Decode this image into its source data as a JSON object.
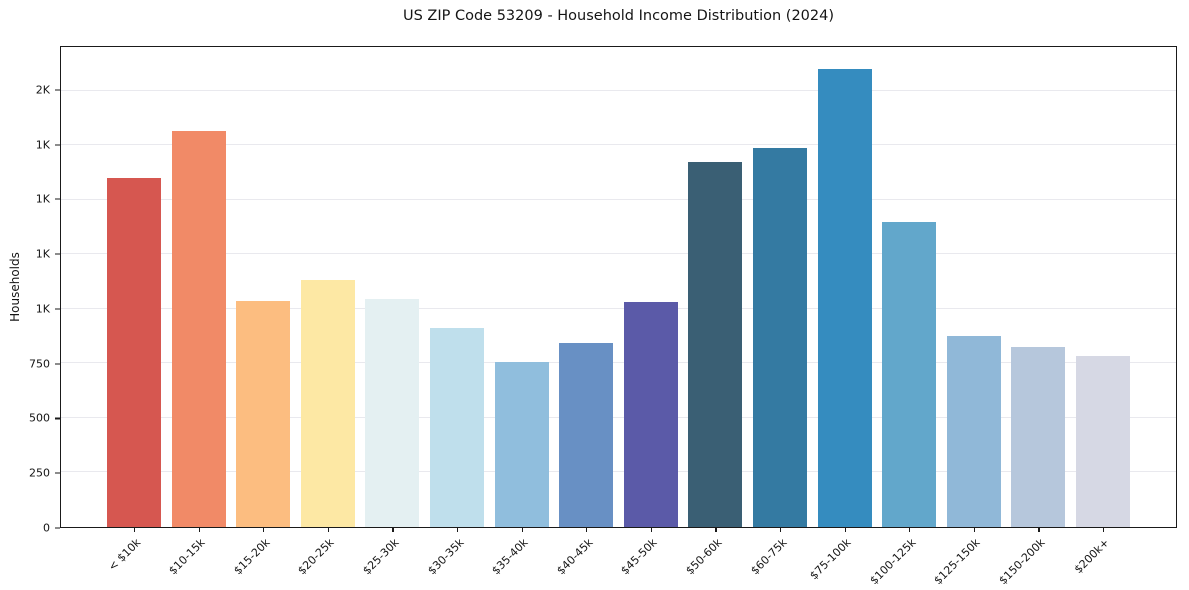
{
  "figure": {
    "title": "US ZIP Code 53209 - Household Income Distribution (2024)"
  },
  "chart_data": {
    "type": "bar",
    "title": "US ZIP Code 53209 - Household Income Distribution (2024)",
    "xlabel": "",
    "ylabel": "Households",
    "ylim": [
      0,
      2200
    ],
    "grid": true,
    "legend": "none",
    "categories": [
      "< $10k",
      "$10-15k",
      "$15-20k",
      "$20-25k",
      "$25-30k",
      "$30-35k",
      "$35-40k",
      "$40-45k",
      "$45-50k",
      "$50-60k",
      "$60-75k",
      "$75-100k",
      "$100-125k",
      "$125-150k",
      "$150-200k",
      "$200k+"
    ],
    "values": [
      1600,
      1815,
      1035,
      1130,
      1045,
      910,
      755,
      845,
      1030,
      1675,
      1735,
      2100,
      1400,
      875,
      825,
      785
    ],
    "bar_colors": [
      "#d65750",
      "#f18a67",
      "#fcbd80",
      "#fde8a4",
      "#e4f0f2",
      "#bfdfec",
      "#90bedd",
      "#6890c4",
      "#5b5aa8",
      "#3a5f74",
      "#347aa2",
      "#358cbf",
      "#62a7cb",
      "#90b8d8",
      "#b6c7dc",
      "#d6d8e4"
    ],
    "yticks": [
      {
        "value": 0,
        "label": "0"
      },
      {
        "value": 250,
        "label": "250"
      },
      {
        "value": 500,
        "label": "500"
      },
      {
        "value": 750,
        "label": "750"
      },
      {
        "value": 1000,
        "label": "1K"
      },
      {
        "value": 1250,
        "label": "1K"
      },
      {
        "value": 1500,
        "label": "1K"
      },
      {
        "value": 1750,
        "label": "1K"
      },
      {
        "value": 2000,
        "label": "2K"
      }
    ],
    "axis_color": "#1a1a1a",
    "grid_color": "#e9e9ee",
    "background": "#ffffff"
  }
}
